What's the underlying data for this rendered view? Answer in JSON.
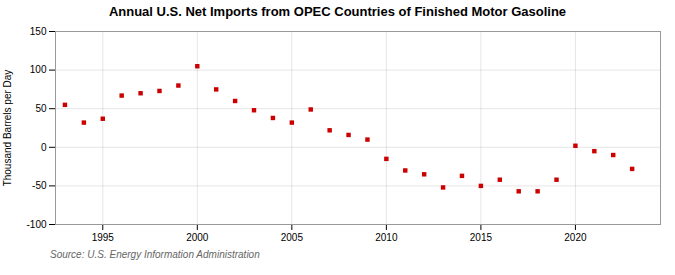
{
  "chart_data": {
    "type": "scatter",
    "title": "Annual U.S. Net Imports from OPEC Countries of Finished Motor Gasoline",
    "ylabel": "Thousand Barrels per Day",
    "source": "Source: U.S. Energy Information Administration",
    "x": [
      1993,
      1994,
      1995,
      1996,
      1997,
      1998,
      1999,
      2000,
      2001,
      2002,
      2003,
      2004,
      2005,
      2006,
      2007,
      2008,
      2009,
      2010,
      2011,
      2012,
      2013,
      2014,
      2015,
      2016,
      2017,
      2018,
      2019,
      2020,
      2021,
      2022,
      2023
    ],
    "values": [
      55,
      32,
      37,
      67,
      70,
      73,
      80,
      105,
      75,
      60,
      48,
      38,
      32,
      49,
      22,
      16,
      10,
      -15,
      -30,
      -35,
      -52,
      -37,
      -50,
      -42,
      -57,
      -57,
      -42,
      2,
      -5,
      -10,
      -28
    ],
    "color": "#cc0000",
    "marker": "square",
    "xlim": [
      1992.5,
      2024.5
    ],
    "xticks": [
      1995,
      2000,
      2005,
      2010,
      2015,
      2020
    ],
    "ylim": [
      -100,
      150
    ],
    "yticks": [
      -100,
      -50,
      0,
      50,
      100,
      150
    ],
    "grid": true
  }
}
